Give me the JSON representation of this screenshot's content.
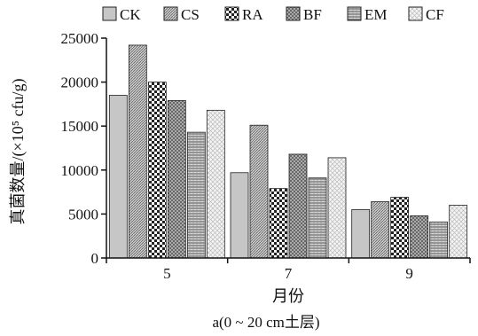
{
  "chart_data": {
    "type": "bar",
    "title": "",
    "caption": "a(0 ~ 20 cm土层)",
    "xlabel": "月份",
    "ylabel": "真菌数量/(×10⁵ cfu/g)",
    "categories": [
      "5",
      "7",
      "9"
    ],
    "ylim": [
      0,
      25000
    ],
    "yticks": [
      "0",
      "5000",
      "10000",
      "15000",
      "20000",
      "25000"
    ],
    "legend_position": "top",
    "series": [
      {
        "name": "CK",
        "values": [
          18500,
          9700,
          5500
        ],
        "pattern": "solid-light"
      },
      {
        "name": "CS",
        "values": [
          24200,
          15100,
          6400
        ],
        "pattern": "diag-dense"
      },
      {
        "name": "RA",
        "values": [
          20000,
          7900,
          6900
        ],
        "pattern": "checker"
      },
      {
        "name": "BF",
        "values": [
          17900,
          11800,
          4800
        ],
        "pattern": "crosshatch"
      },
      {
        "name": "EM",
        "values": [
          14300,
          9100,
          4100
        ],
        "pattern": "hlines"
      },
      {
        "name": "CF",
        "values": [
          16800,
          11400,
          6000
        ],
        "pattern": "dots-light"
      }
    ],
    "colors": {
      "axis": "#111111",
      "bar_stroke": "#222222"
    }
  }
}
